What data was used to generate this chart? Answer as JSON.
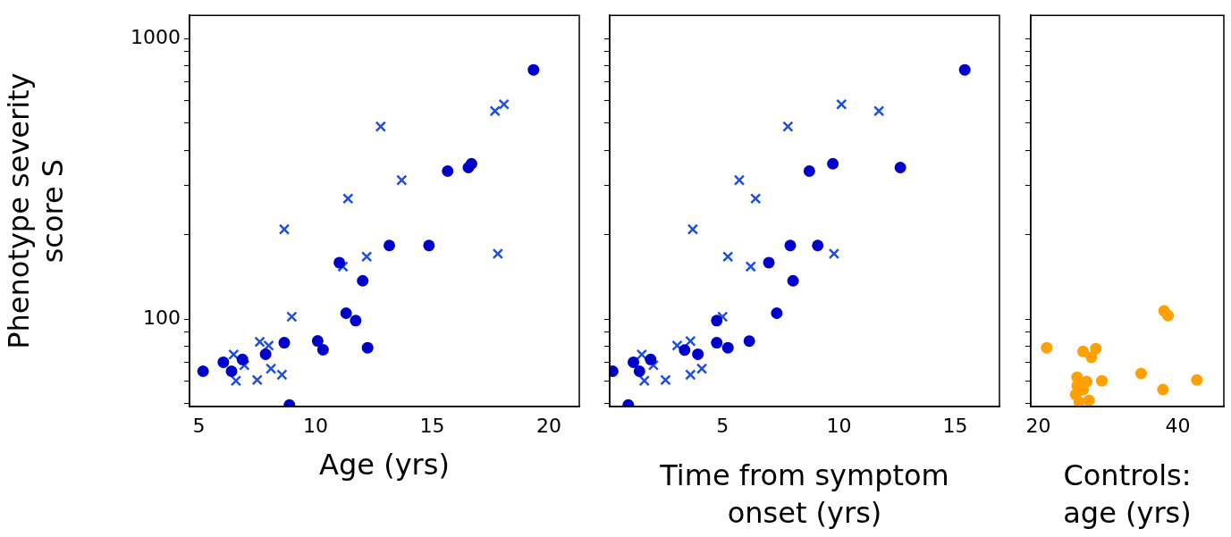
{
  "chart_data": [
    {
      "type": "scatter",
      "xlabel": "Age (yrs)",
      "ylabel": "Phenotype severity score S",
      "log": "y",
      "xlim": [
        4.6,
        21.3
      ],
      "xticks": [
        5,
        10,
        15,
        20
      ],
      "ylim": [
        48.8,
        1210
      ],
      "yticks": [
        {
          "value": 50,
          "label": null
        },
        {
          "value": 60,
          "label": null
        },
        {
          "value": 70,
          "label": null
        },
        {
          "value": 80,
          "label": null
        },
        {
          "value": 90,
          "label": null
        },
        100,
        {
          "value": 200,
          "label": null
        },
        {
          "value": 300,
          "label": null
        },
        {
          "value": 400,
          "label": null
        },
        {
          "value": 500,
          "label": null
        },
        {
          "value": 600,
          "label": null
        },
        {
          "value": 700,
          "label": null
        },
        {
          "value": 800,
          "label": null
        },
        {
          "value": 900,
          "label": null
        },
        1000
      ],
      "legend": false,
      "series": [
        {
          "color": "#0000cc",
          "marker": "circle",
          "x": [
            5.18,
            6.05,
            6.4,
            6.87,
            7.86,
            8.66,
            8.88,
            10.09,
            10.32,
            11.02,
            11.31,
            11.72,
            12.02,
            12.23,
            13.16,
            14.86,
            15.66,
            16.55,
            16.68,
            19.34
          ],
          "values": [
            65.2,
            70.2,
            65.2,
            71.8,
            75,
            82.4,
            49.4,
            83.6,
            77.8,
            159,
            105,
            98.8,
            137,
            79.1,
            183,
            183,
            337,
            347,
            358,
            774
          ]
        },
        {
          "color": "#1f4fe0",
          "marker": "cross",
          "x": [
            6.49,
            6.59,
            6.95,
            7.5,
            7.61,
            7.99,
            8.09,
            8.56,
            8.66,
            8.98,
            11.17,
            11.39,
            12.19,
            12.79,
            13.69,
            17.69,
            18.07,
            17.81
          ],
          "values": [
            74.8,
            60.3,
            68.5,
            60.7,
            83,
            80.5,
            66.6,
            63.4,
            209,
            102,
            154,
            269,
            167,
            486,
            313,
            552,
            583,
            171
          ]
        }
      ]
    },
    {
      "type": "scatter",
      "xlabel": "Time from symptom onset (yrs)",
      "log": "y",
      "tick_labels": "x",
      "xlim": [
        0.15,
        16.9
      ],
      "xticks": [
        5,
        10,
        15
      ],
      "ylim": [
        48.8,
        1210
      ],
      "yticks": [
        {
          "value": 50,
          "label": null
        },
        {
          "value": 60,
          "label": null
        },
        {
          "value": 70,
          "label": null
        },
        {
          "value": 80,
          "label": null
        },
        {
          "value": 90,
          "label": null
        },
        {
          "value": 100,
          "label": null
        },
        {
          "value": 200,
          "label": null
        },
        {
          "value": 300,
          "label": null
        },
        {
          "value": 400,
          "label": null
        },
        {
          "value": 500,
          "label": null
        },
        {
          "value": 600,
          "label": null
        },
        {
          "value": 700,
          "label": null
        },
        {
          "value": 800,
          "label": null
        },
        {
          "value": 900,
          "label": null
        },
        {
          "value": 1000,
          "label": null
        }
      ],
      "legend": false,
      "series": [
        {
          "color": "#0000cc",
          "marker": "circle",
          "x": [
            0.28,
            0.95,
            1.17,
            1.43,
            1.91,
            3.37,
            3.94,
            4.75,
            4.75,
            5.23,
            6.15,
            6.99,
            7.33,
            7.91,
            8.03,
            8.73,
            9.09,
            9.74,
            12.64,
            15.41
          ],
          "values": [
            65.2,
            49.4,
            70.2,
            65.2,
            71.8,
            77.6,
            75,
            98.8,
            82.4,
            79.1,
            83.5,
            159,
            105,
            183,
            137,
            337,
            183,
            358,
            347,
            774
          ]
        },
        {
          "color": "#1f4fe0",
          "marker": "cross",
          "x": [
            1.53,
            1.64,
            2.03,
            2.55,
            3.05,
            3.62,
            3.62,
            4.11,
            3.72,
            5.0,
            5.23,
            6.21,
            5.72,
            6.42,
            7.81,
            10.11,
            11.72,
            9.79
          ],
          "values": [
            74.8,
            60.3,
            68.5,
            60.7,
            80.5,
            83.5,
            63.4,
            66.6,
            209,
            102,
            167,
            154,
            313,
            269,
            486,
            583,
            552,
            171
          ]
        }
      ]
    },
    {
      "type": "scatter",
      "xlabel": "Controls: age (yrs)",
      "log": "y",
      "tick_labels": "x",
      "xlim": [
        18.9,
        46.6
      ],
      "xticks": [
        20,
        40
      ],
      "ylim": [
        48.8,
        1210
      ],
      "yticks": [
        {
          "value": 50,
          "label": null
        },
        {
          "value": 60,
          "label": null
        },
        {
          "value": 70,
          "label": null
        },
        {
          "value": 80,
          "label": null
        },
        {
          "value": 90,
          "label": null
        },
        {
          "value": 100,
          "label": null
        },
        {
          "value": 200,
          "label": null
        },
        {
          "value": 300,
          "label": null
        },
        {
          "value": 400,
          "label": null
        },
        {
          "value": 500,
          "label": null
        },
        {
          "value": 600,
          "label": null
        },
        {
          "value": 700,
          "label": null
        },
        {
          "value": 800,
          "label": null
        },
        {
          "value": 900,
          "label": null
        },
        {
          "value": 1000,
          "label": null
        }
      ],
      "legend": false,
      "series": [
        {
          "color": "#ffa000",
          "marker": "circle",
          "x": [
            21.19,
            26.41,
            28.24,
            27.6,
            25.55,
            26.92,
            25.55,
            26.41,
            25.34,
            25.85,
            27.26,
            29.1,
            34.74,
            37.86,
            38.03,
            38.59,
            42.73
          ],
          "values": [
            79.1,
            76.7,
            78.5,
            73.1,
            62.1,
            59.9,
            57.8,
            56,
            53.8,
            50.6,
            51.3,
            60.3,
            64,
            56.1,
            107,
            103,
            60.7
          ]
        }
      ]
    }
  ]
}
